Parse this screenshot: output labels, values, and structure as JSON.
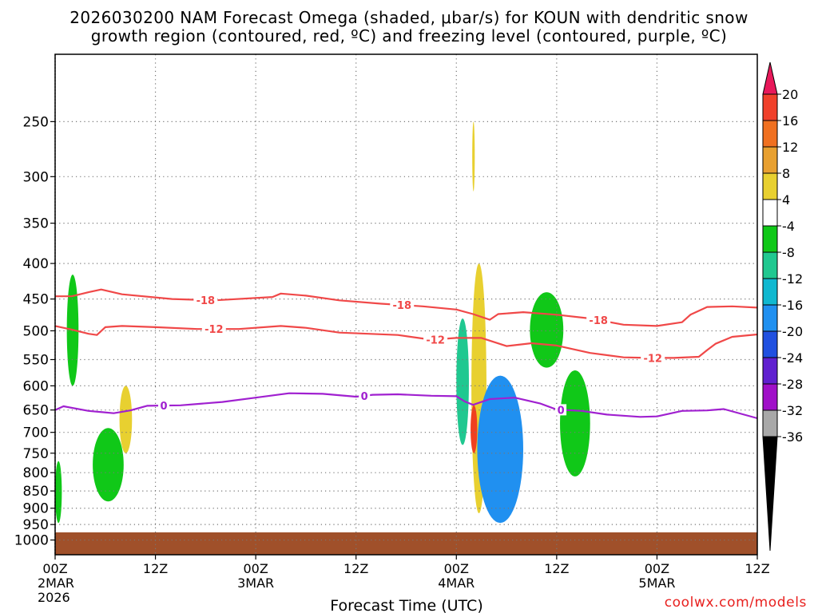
{
  "chart_data": {
    "type": "heatmap",
    "title_line1": "2026030200 NAM Forecast Omega (shaded, μbar/s) for KOUN with dendritic snow",
    "title_line2": "growth region (contoured, red, ºC) and freezing level (contoured, purple, ºC)",
    "xlabel": "Forecast Time (UTC)",
    "ylabel": "",
    "y_ticks": [
      250,
      300,
      350,
      400,
      450,
      500,
      550,
      600,
      650,
      700,
      750,
      800,
      850,
      900,
      950,
      1000
    ],
    "y_range_hpa": [
      1050,
      200
    ],
    "x_range_hours": [
      0,
      84
    ],
    "x_ticks": [
      {
        "hour": 0,
        "l1": "00Z",
        "l2": "2MAR",
        "l3": "2026"
      },
      {
        "hour": 12,
        "l1": "12Z",
        "l2": "",
        "l3": ""
      },
      {
        "hour": 24,
        "l1": "00Z",
        "l2": "3MAR",
        "l3": ""
      },
      {
        "hour": 36,
        "l1": "12Z",
        "l2": "",
        "l3": ""
      },
      {
        "hour": 48,
        "l1": "00Z",
        "l2": "4MAR",
        "l3": ""
      },
      {
        "hour": 60,
        "l1": "12Z",
        "l2": "",
        "l3": ""
      },
      {
        "hour": 72,
        "l1": "00Z",
        "l2": "5MAR",
        "l3": ""
      },
      {
        "hour": 84,
        "l1": "12Z",
        "l2": "",
        "l3": ""
      }
    ],
    "colorbar": {
      "labels": [
        20,
        16,
        12,
        8,
        4,
        -4,
        -8,
        -12,
        -16,
        -20,
        -24,
        -28,
        -32,
        -36
      ],
      "colors": [
        "#e8185a",
        "#f0402a",
        "#f07020",
        "#e8a030",
        "#e8d030",
        "#ffffff",
        "#10c818",
        "#20c890",
        "#10b8d0",
        "#2090f0",
        "#2050e0",
        "#6020d0",
        "#a010c8",
        "#a8a8a8",
        "#000000"
      ]
    },
    "series": [
      {
        "name": "-18",
        "color": "#f04848",
        "label_hours": [
          18,
          41.5,
          65
        ],
        "points": [
          [
            0,
            446
          ],
          [
            2,
            446
          ],
          [
            4,
            440
          ],
          [
            5.5,
            436
          ],
          [
            8,
            443
          ],
          [
            14,
            450
          ],
          [
            19,
            452
          ],
          [
            26,
            447
          ],
          [
            27,
            442
          ],
          [
            30,
            445
          ],
          [
            34,
            452
          ],
          [
            39,
            457
          ],
          [
            44,
            461
          ],
          [
            48,
            466
          ],
          [
            50,
            473
          ],
          [
            52,
            482
          ],
          [
            53,
            473
          ],
          [
            56,
            470
          ],
          [
            60,
            474
          ],
          [
            64,
            480
          ],
          [
            68,
            490
          ],
          [
            72,
            492
          ],
          [
            75,
            486
          ],
          [
            76,
            474
          ],
          [
            78,
            462
          ],
          [
            81,
            461
          ],
          [
            84,
            463
          ]
        ]
      },
      {
        "name": "-12",
        "color": "#f04848",
        "label_hours": [
          19,
          45.5,
          71.5
        ],
        "points": [
          [
            0,
            492
          ],
          [
            2,
            498
          ],
          [
            4,
            505
          ],
          [
            5,
            507
          ],
          [
            6,
            494
          ],
          [
            8,
            492
          ],
          [
            12,
            494
          ],
          [
            17,
            497
          ],
          [
            22,
            497
          ],
          [
            27,
            492
          ],
          [
            30,
            495
          ],
          [
            34,
            503
          ],
          [
            41,
            507
          ],
          [
            45,
            515
          ],
          [
            48,
            512
          ],
          [
            51,
            512
          ],
          [
            54,
            526
          ],
          [
            57,
            521
          ],
          [
            60,
            525
          ],
          [
            64,
            538
          ],
          [
            68,
            546
          ],
          [
            71,
            547
          ],
          [
            74,
            547
          ],
          [
            77,
            545
          ],
          [
            78,
            533
          ],
          [
            79,
            522
          ],
          [
            81,
            510
          ],
          [
            84,
            506
          ]
        ]
      },
      {
        "name": "0",
        "color": "#a020d0",
        "label_hours": [
          13,
          37,
          60.5
        ],
        "points": [
          [
            0,
            650
          ],
          [
            1,
            642
          ],
          [
            4,
            652
          ],
          [
            7,
            657
          ],
          [
            9,
            651
          ],
          [
            11,
            641
          ],
          [
            15,
            640
          ],
          [
            20,
            633
          ],
          [
            24,
            624
          ],
          [
            28,
            615
          ],
          [
            32,
            616
          ],
          [
            36,
            622
          ],
          [
            38,
            618
          ],
          [
            41,
            617
          ],
          [
            45,
            620
          ],
          [
            48,
            621
          ],
          [
            49,
            632
          ],
          [
            50,
            639
          ],
          [
            52,
            627
          ],
          [
            55,
            624
          ],
          [
            58,
            636
          ],
          [
            60,
            649
          ],
          [
            63,
            652
          ],
          [
            66,
            660
          ],
          [
            70,
            665
          ],
          [
            72,
            664
          ],
          [
            75,
            652
          ],
          [
            78,
            651
          ],
          [
            80,
            648
          ],
          [
            84,
            668
          ]
        ]
      }
    ],
    "omega_regions": [
      {
        "value_label": "-4 to -8",
        "color": "#10c818",
        "hpa_range": [
          415,
          600
        ],
        "hour_range": [
          1.4,
          2.8
        ]
      },
      {
        "value_label": "-4 to -8",
        "color": "#10c818",
        "hpa_range": [
          770,
          945
        ],
        "hour_range": [
          0,
          0.8
        ]
      },
      {
        "value_label": "-4 to -8",
        "color": "#10c818",
        "hpa_range": [
          690,
          880
        ],
        "hour_range": [
          4.5,
          8.2
        ]
      },
      {
        "value_label": "4 to 8",
        "color": "#e8d030",
        "hpa_range": [
          600,
          750
        ],
        "hour_range": [
          7.7,
          9.2
        ]
      },
      {
        "value_label": "4 to 8",
        "color": "#e8d030",
        "hpa_range": [
          250,
          315
        ],
        "hour_range": [
          49.9,
          50.2
        ]
      },
      {
        "value_label": "4 to 8",
        "color": "#e8d030",
        "hpa_range": [
          400,
          915
        ],
        "hour_range": [
          49.8,
          51.6
        ]
      },
      {
        "value_label": "8 to 20",
        "color": "#f04020",
        "hpa_range": [
          640,
          750
        ],
        "hour_range": [
          49.7,
          50.5
        ]
      },
      {
        "value_label": "-4 to -12",
        "color": "#20c890",
        "hpa_range": [
          480,
          730
        ],
        "hour_range": [
          48.0,
          49.5
        ]
      },
      {
        "value_label": "-4 to -20",
        "color": "#2090f0",
        "hpa_range": [
          580,
          945
        ],
        "hour_range": [
          50.5,
          56.0
        ]
      },
      {
        "value_label": "-4 to -8",
        "color": "#10c818",
        "hpa_range": [
          440,
          565
        ],
        "hour_range": [
          56.8,
          60.8
        ]
      },
      {
        "value_label": "-4 to -8",
        "color": "#10c818",
        "hpa_range": [
          570,
          810
        ],
        "hour_range": [
          60.4,
          64.0
        ]
      }
    ],
    "ground_band": {
      "color": "#a0502a",
      "hpa_from": 975
    }
  },
  "credit": "coolwx.com/models"
}
